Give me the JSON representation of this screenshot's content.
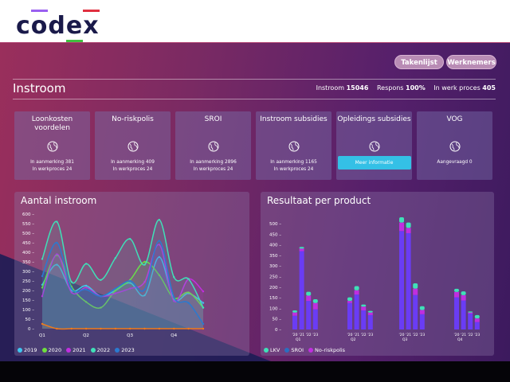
{
  "logo": {
    "text": "codex"
  },
  "nav": {
    "buttons": [
      "Takenlijst",
      "Werknemers"
    ]
  },
  "page": {
    "title": "Instroom",
    "stats": [
      {
        "label": "Instroom",
        "value": "15046"
      },
      {
        "label": "Respons",
        "value": "100%"
      },
      {
        "label": "In werk proces",
        "value": "405"
      }
    ]
  },
  "cards": [
    {
      "title": "Loonkosten voordelen",
      "icon": "globe-icon",
      "lines": [
        "In aanmerking 381",
        "In werkproces 24"
      ]
    },
    {
      "title": "No-riskpolis",
      "icon": "globe-icon",
      "lines": [
        "In aanmerking 409",
        "In werkproces 24"
      ]
    },
    {
      "title": "SROI",
      "icon": "globe-icon",
      "lines": [
        "In aanmerking 2896",
        "In werkproces 24"
      ]
    },
    {
      "title": "Instroom subsidies",
      "icon": "globe-icon",
      "lines": [
        "In aanmerking 1165",
        "In werkproces 24"
      ]
    },
    {
      "title": "Opleidings subsidies",
      "icon": "globe-icon",
      "button": "Meer informatie"
    },
    {
      "title": "VOG",
      "icon": "globe-icon",
      "lines": [
        "Aangevraagd 0"
      ]
    }
  ],
  "chart_data": [
    {
      "type": "area",
      "title": "Aantal instroom",
      "x_ticks": [
        "Q1",
        "Q2",
        "Q3",
        "Q4"
      ],
      "ylim": [
        0,
        600
      ],
      "y_ticks": [
        "0",
        "50",
        "100",
        "150",
        "200",
        "250",
        "300",
        "350",
        "400",
        "450",
        "500",
        "550",
        "600"
      ],
      "legend": "bottom-left",
      "series": [
        {
          "name": "2019",
          "color": "#3fc6f0",
          "values": [
            230,
            335,
            200,
            225,
            170,
            200,
            240,
            175,
            375,
            155,
            185,
            135
          ]
        },
        {
          "name": "2020",
          "color": "#6ee03c",
          "values": [
            215,
            385,
            220,
            140,
            110,
            200,
            255,
            350,
            280,
            160,
            190,
            110
          ]
        },
        {
          "name": "2021",
          "color": "#c22ee0",
          "values": [
            170,
            390,
            190,
            215,
            170,
            185,
            210,
            245,
            440,
            145,
            260,
            195
          ]
        },
        {
          "name": "2022",
          "color": "#3fe0b8",
          "values": [
            365,
            560,
            245,
            340,
            255,
            370,
            470,
            335,
            570,
            270,
            260,
            110
          ]
        },
        {
          "name": "2023",
          "color": "#2a7ad0",
          "values": [
            275,
            450,
            210,
            205,
            170,
            210,
            250,
            205,
            460,
            165,
            135,
            25
          ]
        },
        {
          "color": "#f07a1a",
          "values": [
            25,
            0,
            0,
            0,
            0,
            0,
            0,
            0,
            0,
            0,
            0,
            0
          ]
        }
      ]
    },
    {
      "type": "bar",
      "stacked": true,
      "title": "Resultaat per product",
      "ylim": [
        0,
        550
      ],
      "y_ticks": [
        "0",
        "50",
        "100",
        "150",
        "200",
        "250",
        "300",
        "350",
        "400",
        "450",
        "500"
      ],
      "categories": [
        "Q1",
        "Q2",
        "Q3",
        "Q4"
      ],
      "sub_categories": [
        "'20",
        "'21",
        "'22",
        "'23"
      ],
      "legend": "bottom-left",
      "series": [
        {
          "name": "SROI",
          "color": "#6a3cf5",
          "legend_color": "#2a6fc0",
          "values": [
            [
              65,
              370,
              135,
              95
            ],
            [
              125,
              165,
              90,
              68
            ],
            [
              465,
              455,
              163,
              72
            ],
            [
              152,
              137,
              75,
              35
            ]
          ]
        },
        {
          "name": "No-riskpolis",
          "color": "#c02ee0",
          "values": [
            [
              15,
              12,
              25,
              30
            ],
            [
              10,
              20,
              18,
              12
            ],
            [
              40,
              25,
              30,
              20
            ],
            [
              25,
              25,
              5,
              17
            ]
          ]
        },
        {
          "name": "LKV",
          "color": "#3fe0b8",
          "values": [
            [
              10,
              8,
              18,
              18
            ],
            [
              17,
              20,
              10,
              8
            ],
            [
              25,
              25,
              25,
              18
            ],
            [
              15,
              18,
              5,
              16
            ]
          ]
        }
      ]
    }
  ]
}
